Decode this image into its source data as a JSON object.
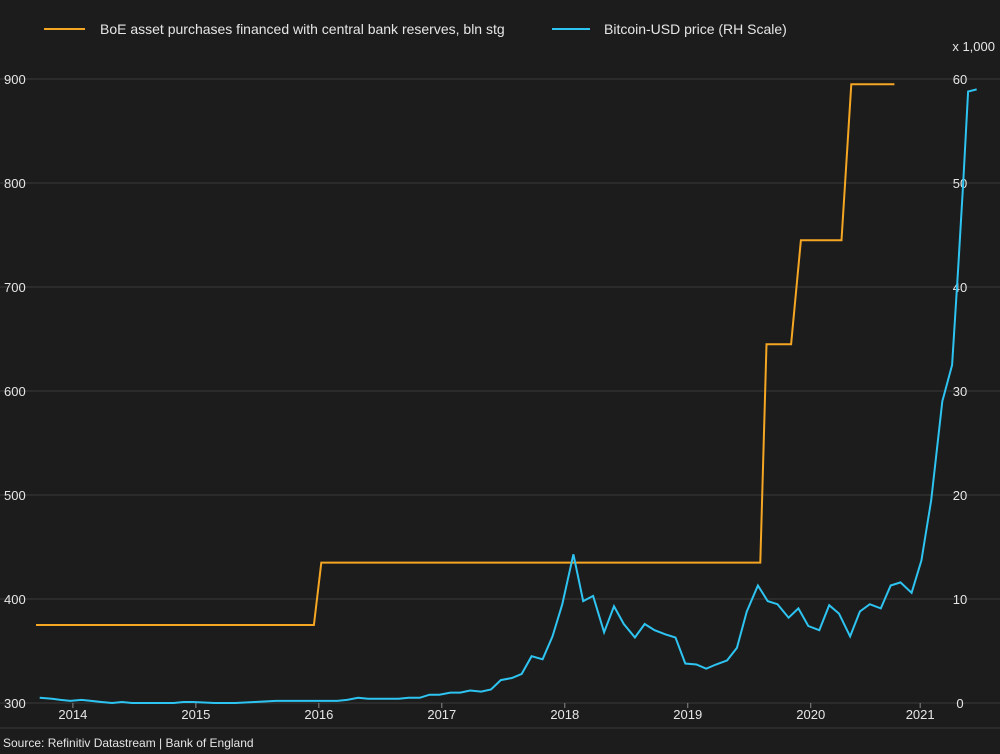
{
  "chart_data": {
    "type": "line",
    "legend": {
      "placement": "top",
      "entries": [
        {
          "name": "BoE asset purchases financed with central bank reserves, bln stg",
          "color": "#f5a623"
        },
        {
          "name": "Bitcoin-USD price (RH Scale)",
          "color": "#2ec4f1"
        }
      ]
    },
    "x_axis": {
      "range": [
        2013.8,
        2021.2
      ],
      "ticks": [
        {
          "label": "2014",
          "value": 2014.1
        },
        {
          "label": "2015",
          "value": 2015.1
        },
        {
          "label": "2016",
          "value": 2016.1
        },
        {
          "label": "2017",
          "value": 2017.1
        },
        {
          "label": "2018",
          "value": 2018.1
        },
        {
          "label": "2019",
          "value": 2019.1
        },
        {
          "label": "2020",
          "value": 2020.1
        },
        {
          "label": "2021",
          "value": 2020.99
        }
      ]
    },
    "y_left": {
      "range": [
        300,
        900
      ],
      "ticks": [
        "300",
        "400",
        "500",
        "600",
        "700",
        "800",
        "900"
      ]
    },
    "y_right": {
      "range": [
        0,
        60
      ],
      "unit_label": "x 1,000",
      "ticks": [
        "0",
        "10",
        "20",
        "30",
        "40",
        "50",
        "60"
      ]
    },
    "series": [
      {
        "name": "BoE asset purchases financed with central bank reserves, bln stg",
        "axis": "left",
        "color": "#f5a623",
        "points": [
          [
            2013.8,
            375
          ],
          [
            2016.06,
            375
          ],
          [
            2016.12,
            435
          ],
          [
            2019.69,
            435
          ],
          [
            2019.74,
            645
          ],
          [
            2019.94,
            645
          ],
          [
            2020.02,
            745
          ],
          [
            2020.35,
            745
          ],
          [
            2020.43,
            895
          ],
          [
            2020.78,
            895
          ]
        ]
      },
      {
        "name": "Bitcoin-USD price (RH Scale)",
        "axis": "right",
        "color": "#2ec4f1",
        "points": [
          [
            2013.83,
            0.5
          ],
          [
            2013.93,
            0.4
          ],
          [
            2014.0,
            0.3
          ],
          [
            2014.08,
            0.2
          ],
          [
            2014.17,
            0.3
          ],
          [
            2014.25,
            0.2
          ],
          [
            2014.33,
            0.1
          ],
          [
            2014.42,
            0.0
          ],
          [
            2014.5,
            0.1
          ],
          [
            2014.58,
            0.0
          ],
          [
            2014.75,
            0.0
          ],
          [
            2014.92,
            0.0
          ],
          [
            2015.0,
            0.1
          ],
          [
            2015.08,
            0.1
          ],
          [
            2015.25,
            0.0
          ],
          [
            2015.42,
            0.0
          ],
          [
            2015.58,
            0.1
          ],
          [
            2015.75,
            0.2
          ],
          [
            2015.92,
            0.2
          ],
          [
            2016.08,
            0.2
          ],
          [
            2016.25,
            0.2
          ],
          [
            2016.33,
            0.3
          ],
          [
            2016.42,
            0.5
          ],
          [
            2016.5,
            0.4
          ],
          [
            2016.58,
            0.4
          ],
          [
            2016.67,
            0.4
          ],
          [
            2016.75,
            0.4
          ],
          [
            2016.83,
            0.5
          ],
          [
            2016.92,
            0.5
          ],
          [
            2017.0,
            0.8
          ],
          [
            2017.08,
            0.8
          ],
          [
            2017.17,
            1.0
          ],
          [
            2017.25,
            1.0
          ],
          [
            2017.33,
            1.2
          ],
          [
            2017.42,
            1.1
          ],
          [
            2017.5,
            1.3
          ],
          [
            2017.58,
            2.2
          ],
          [
            2017.67,
            2.4
          ],
          [
            2017.75,
            2.8
          ],
          [
            2017.83,
            4.5
          ],
          [
            2017.92,
            4.2
          ],
          [
            2018.0,
            6.4
          ],
          [
            2018.08,
            9.5
          ],
          [
            2018.17,
            14.3
          ],
          [
            2018.25,
            9.8
          ],
          [
            2018.33,
            10.3
          ],
          [
            2018.42,
            6.8
          ],
          [
            2018.5,
            9.3
          ],
          [
            2018.58,
            7.6
          ],
          [
            2018.67,
            6.3
          ],
          [
            2018.75,
            7.6
          ],
          [
            2018.83,
            7.0
          ],
          [
            2018.92,
            6.6
          ],
          [
            2019.0,
            6.3
          ],
          [
            2019.08,
            3.8
          ],
          [
            2019.17,
            3.7
          ],
          [
            2019.25,
            3.3
          ],
          [
            2019.33,
            3.7
          ],
          [
            2019.42,
            4.1
          ],
          [
            2019.5,
            5.3
          ],
          [
            2019.58,
            8.8
          ],
          [
            2019.67,
            11.3
          ],
          [
            2019.75,
            9.8
          ],
          [
            2019.83,
            9.5
          ],
          [
            2019.92,
            8.2
          ],
          [
            2020.0,
            9.1
          ],
          [
            2020.08,
            7.4
          ],
          [
            2020.17,
            7.0
          ],
          [
            2020.25,
            9.4
          ],
          [
            2020.33,
            8.6
          ],
          [
            2020.42,
            6.4
          ],
          [
            2020.5,
            8.8
          ],
          [
            2020.58,
            9.5
          ],
          [
            2020.67,
            9.1
          ],
          [
            2020.75,
            11.3
          ],
          [
            2020.83,
            11.6
          ],
          [
            2020.92,
            10.6
          ],
          [
            2021.0,
            13.7
          ],
          [
            2021.08,
            19.5
          ],
          [
            2021.17,
            29.0
          ],
          [
            2021.25,
            32.5
          ],
          [
            2021.3,
            42.0
          ],
          [
            2021.34,
            50.0
          ],
          [
            2021.38,
            58.8
          ],
          [
            2021.45,
            59.0
          ]
        ]
      }
    ],
    "source": "Source: Refinitiv Datastream | Bank of England"
  }
}
